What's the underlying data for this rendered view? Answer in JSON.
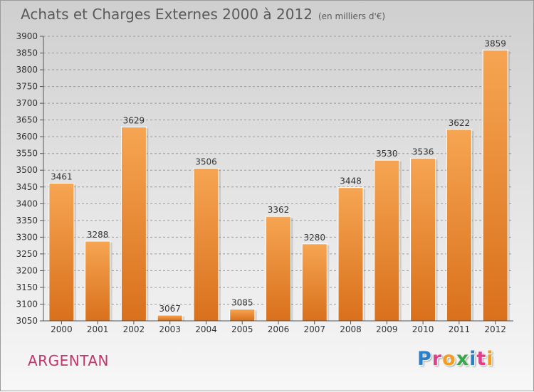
{
  "header": {
    "title": "Achats et Charges Externes 2000 à 2012",
    "unit": "(en milliers d'€)"
  },
  "footer": {
    "city": "ARGENTAN",
    "logo_letters": [
      "P",
      "r",
      "o",
      "x",
      "i",
      "t",
      "i"
    ],
    "logo_colors": [
      "#2a7fc9",
      "#e0408a",
      "#f39c1e",
      "#3aa64a",
      "#2a7fc9",
      "#e0408a",
      "#f39c1e"
    ]
  },
  "colors": {
    "bar_light": "#f6a552",
    "bar_dark": "#d9701c",
    "axis": "#555555",
    "grid": "#9a9a9a",
    "text": "#333333",
    "city": "#c2366b"
  },
  "chart_data": {
    "type": "bar",
    "title": "Achats et Charges Externes 2000 à 2012",
    "subtitle": "(en milliers d'€)",
    "xlabel": "",
    "ylabel": "",
    "categories": [
      "2000",
      "2001",
      "2002",
      "2003",
      "2004",
      "2005",
      "2006",
      "2007",
      "2008",
      "2009",
      "2010",
      "2011",
      "2012"
    ],
    "values": [
      3461,
      3288,
      3629,
      3067,
      3506,
      3085,
      3362,
      3280,
      3448,
      3530,
      3536,
      3622,
      3859
    ],
    "ylim": [
      3050,
      3900
    ],
    "yticks": [
      3050,
      3100,
      3150,
      3200,
      3250,
      3300,
      3350,
      3400,
      3450,
      3500,
      3550,
      3600,
      3650,
      3700,
      3750,
      3800,
      3850,
      3900
    ],
    "grid": true,
    "data_labels": true
  }
}
